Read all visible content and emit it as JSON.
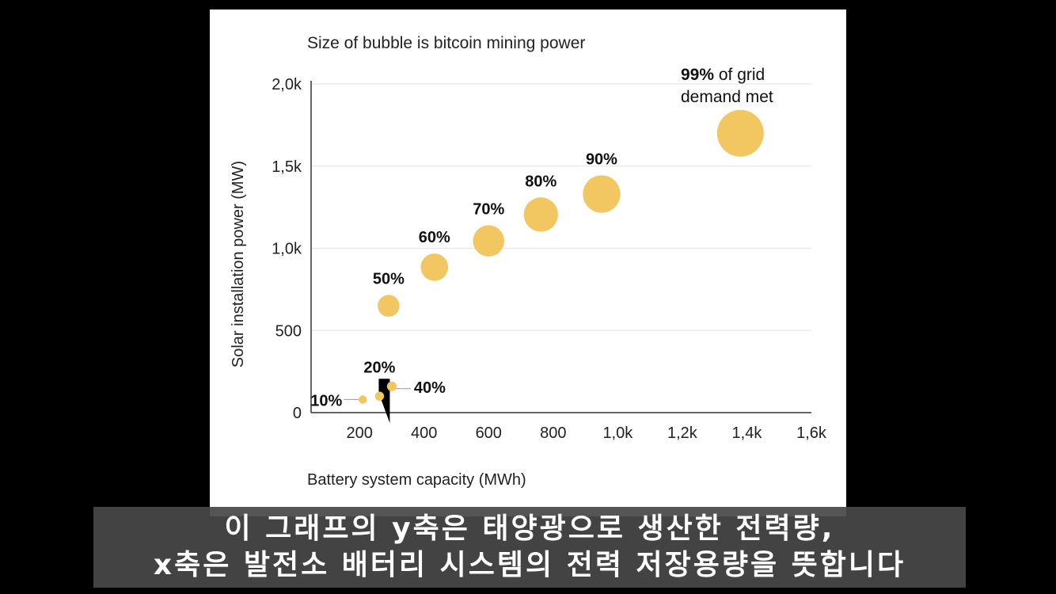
{
  "chart_data": {
    "type": "scatter",
    "subtitle": "Size of bubble is bitcoin mining power",
    "xlabel": "Battery system capacity (MWh)",
    "ylabel": "Solar installation power (MW)",
    "xlim": [
      50,
      1600
    ],
    "ylim": [
      0,
      2000
    ],
    "x_ticks": [
      {
        "value": 200,
        "label": "200"
      },
      {
        "value": 400,
        "label": "400"
      },
      {
        "value": 600,
        "label": "600"
      },
      {
        "value": 800,
        "label": "800"
      },
      {
        "value": 1000,
        "label": "1,0k"
      },
      {
        "value": 1200,
        "label": "1,2k"
      },
      {
        "value": 1400,
        "label": "1,4k"
      },
      {
        "value": 1600,
        "label": "1,6k"
      }
    ],
    "y_ticks": [
      {
        "value": 0,
        "label": "0"
      },
      {
        "value": 500,
        "label": "500"
      },
      {
        "value": 1000,
        "label": "1,0k"
      },
      {
        "value": 1500,
        "label": "1,5k"
      },
      {
        "value": 2000,
        "label": "2,0k"
      }
    ],
    "grid": true,
    "color": "#F2C661",
    "points": [
      {
        "label": "10%",
        "x": 210,
        "y": 80,
        "size": 1
      },
      {
        "label": "20%",
        "x": 262,
        "y": 100,
        "size": 1.5
      },
      {
        "label": "40%",
        "x": 300,
        "y": 160,
        "size": 2
      },
      {
        "label": "50%",
        "x": 290,
        "y": 650,
        "size": 24
      },
      {
        "label": "60%",
        "x": 432,
        "y": 885,
        "size": 42
      },
      {
        "label": "70%",
        "x": 600,
        "y": 1045,
        "size": 58
      },
      {
        "label": "80%",
        "x": 762,
        "y": 1205,
        "size": 72
      },
      {
        "label": "90%",
        "x": 950,
        "y": 1330,
        "size": 88
      },
      {
        "label": "99%",
        "x": 1380,
        "y": 1700,
        "size": 145
      }
    ],
    "annotation": {
      "bold": "99%",
      "text_line1": " of grid",
      "text_line2": "demand met"
    }
  },
  "caption": {
    "line1": "이 그래프의 y축은 태양광으로 생산한 전력량,",
    "line2": "x축은 발전소 배터리 시스템의 전력 저장용량을 뜻합니다"
  }
}
